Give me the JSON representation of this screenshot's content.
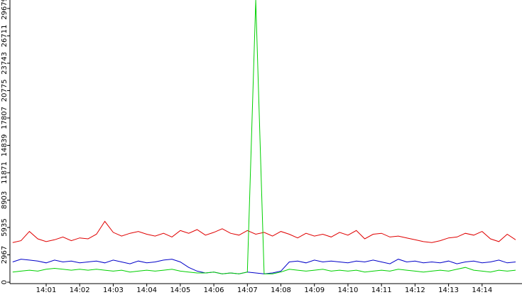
{
  "chart_data": {
    "type": "line",
    "x": [
      0,
      0.25,
      0.5,
      0.75,
      1,
      1.25,
      1.5,
      1.75,
      2,
      2.25,
      2.5,
      2.75,
      3,
      3.25,
      3.5,
      3.75,
      4,
      4.25,
      4.5,
      4.75,
      5,
      5.25,
      5.5,
      5.75,
      6,
      6.25,
      6.5,
      6.75,
      7,
      7.25,
      7.5,
      7.75,
      8,
      8.25,
      8.5,
      8.75,
      9,
      9.25,
      9.5,
      9.75,
      10,
      10.25,
      10.5,
      10.75,
      11,
      11.25,
      11.5,
      11.75,
      12,
      12.25,
      12.5,
      12.75,
      13,
      13.25,
      13.5,
      13.75,
      14,
      14.25,
      14.5,
      14.75,
      15
    ],
    "series": [
      {
        "color": "#e00000",
        "values": [
          4300,
          4500,
          5500,
          4700,
          4400,
          4600,
          4900,
          4500,
          4800,
          4700,
          5200,
          6600,
          5400,
          5000,
          5300,
          5500,
          5200,
          5000,
          5300,
          4900,
          5600,
          5300,
          5700,
          5100,
          5400,
          5800,
          5300,
          5100,
          5600,
          5200,
          5400,
          5000,
          5500,
          5200,
          4800,
          5300,
          5000,
          5200,
          4900,
          5400,
          5100,
          5600,
          4700,
          5200,
          5300,
          4900,
          5000,
          4800,
          4600,
          4400,
          4300,
          4500,
          4800,
          4900,
          5300,
          5100,
          5500,
          4700,
          4400,
          5200,
          4600
        ]
      },
      {
        "color": "#0000c8",
        "values": [
          2200,
          2500,
          2400,
          2300,
          2100,
          2400,
          2200,
          2300,
          2100,
          2200,
          2300,
          2100,
          2400,
          2200,
          2000,
          2300,
          2100,
          2200,
          2400,
          2500,
          2200,
          1600,
          1200,
          1000,
          1100,
          900,
          1000,
          900,
          1100,
          1000,
          900,
          1000,
          1200,
          2200,
          2300,
          2100,
          2400,
          2200,
          2300,
          2200,
          2100,
          2300,
          2200,
          2400,
          2200,
          2000,
          2500,
          2200,
          2300,
          2100,
          2200,
          2100,
          2300,
          2000,
          2200,
          2300,
          2100,
          2200,
          2400,
          2100,
          2200
        ]
      },
      {
        "color": "#00d000",
        "values": [
          1100,
          1200,
          1300,
          1200,
          1400,
          1500,
          1400,
          1300,
          1400,
          1300,
          1400,
          1300,
          1200,
          1300,
          1100,
          1200,
          1300,
          1200,
          1300,
          1400,
          1200,
          1100,
          1000,
          1000,
          1100,
          900,
          1000,
          900,
          1100,
          30600,
          900,
          900,
          1100,
          1400,
          1300,
          1200,
          1300,
          1400,
          1200,
          1300,
          1200,
          1300,
          1100,
          1200,
          1300,
          1200,
          1400,
          1300,
          1200,
          1100,
          1200,
          1300,
          1200,
          1400,
          1600,
          1300,
          1200,
          1100,
          1300,
          1200,
          1300
        ]
      }
    ],
    "xlim": [
      -0.08,
      15.19
    ],
    "xticks": [
      {
        "value": 1,
        "label": "14:01"
      },
      {
        "value": 2,
        "label": "14:02"
      },
      {
        "value": 3,
        "label": "14:03"
      },
      {
        "value": 4,
        "label": "14:04"
      },
      {
        "value": 5,
        "label": "14:05"
      },
      {
        "value": 6,
        "label": "14:06"
      },
      {
        "value": 7,
        "label": "14:07"
      },
      {
        "value": 8,
        "label": "14:08"
      },
      {
        "value": 9,
        "label": "14:09"
      },
      {
        "value": 10,
        "label": "14:10"
      },
      {
        "value": 11,
        "label": "14:11"
      },
      {
        "value": 12,
        "label": "14:12"
      },
      {
        "value": 13,
        "label": "14:13"
      },
      {
        "value": 14,
        "label": "14:14"
      }
    ],
    "ylim": [
      0,
      30600
    ],
    "yticks": [
      0,
      2967,
      5935,
      8903,
      11871,
      14839,
      17807,
      20775,
      23743,
      26711,
      29679
    ]
  }
}
